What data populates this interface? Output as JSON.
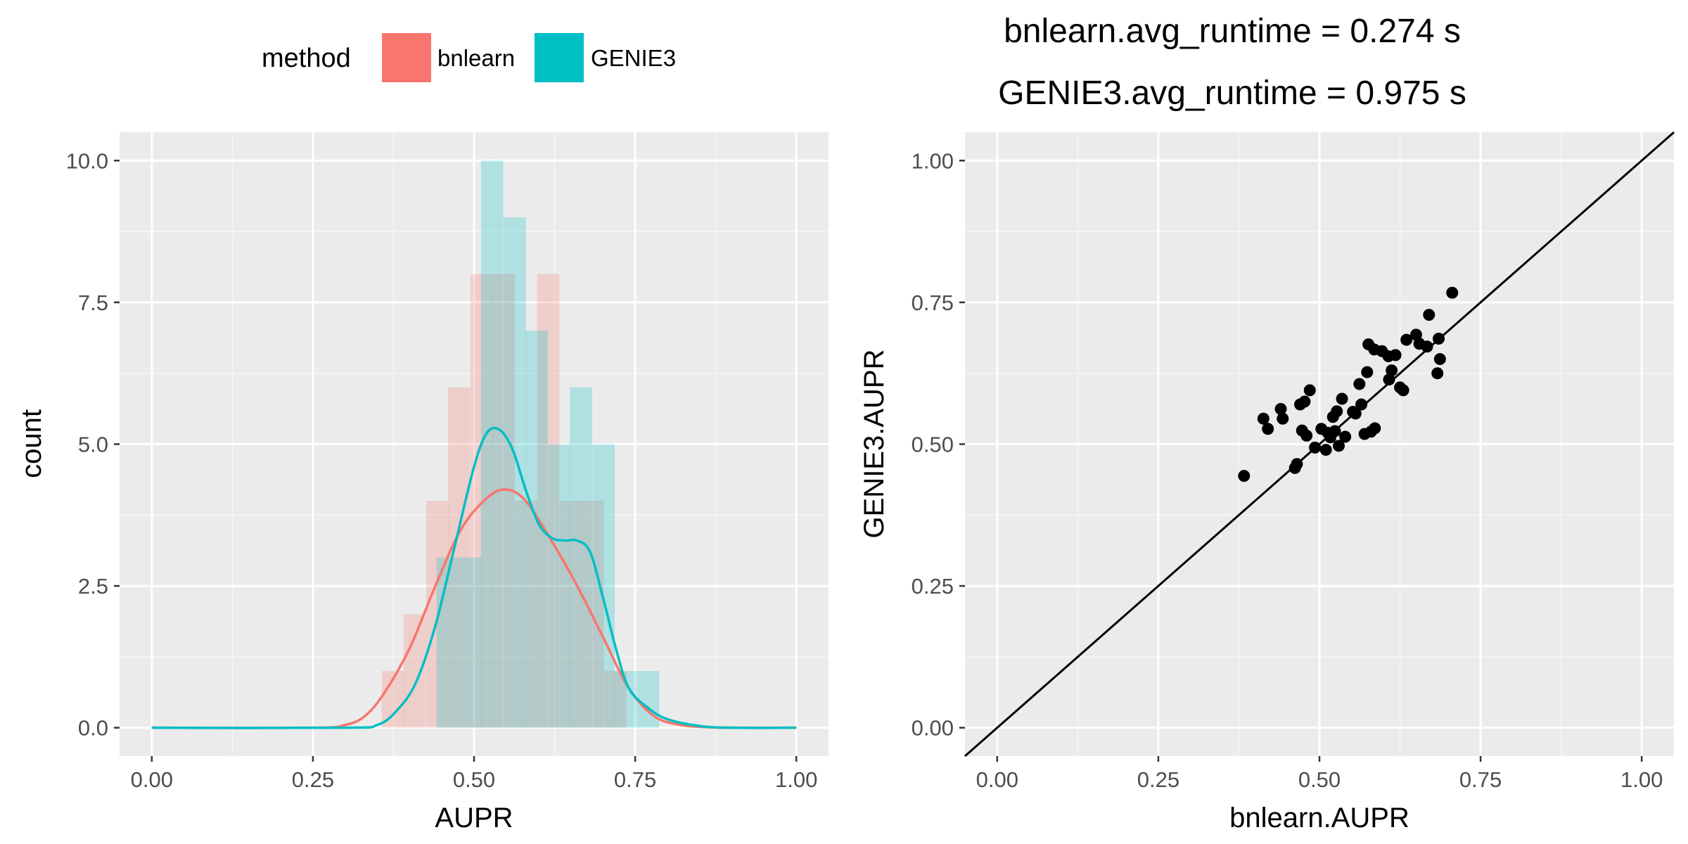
{
  "legend": {
    "title": "method",
    "items": [
      {
        "label": "bnlearn",
        "color": "#F8766D"
      },
      {
        "label": "GENIE3",
        "color": "#00BFC4"
      }
    ]
  },
  "chart_data": [
    {
      "type": "bar",
      "subtype": "histogram+density",
      "title": "",
      "xlabel": "AUPR",
      "ylabel": "count",
      "xlim": [
        -0.05,
        1.05
      ],
      "ylim": [
        -0.5,
        10.5
      ],
      "xticks": [
        0,
        0.25,
        0.5,
        0.75,
        1
      ],
      "xtick_labels": [
        "0.00",
        "0.25",
        "0.50",
        "0.75",
        "1.00"
      ],
      "yticks": [
        0,
        2.5,
        5,
        7.5,
        10
      ],
      "ytick_labels": [
        "0.0",
        "2.5",
        "5.0",
        "7.5",
        "10.0"
      ],
      "grid": true,
      "bin_width": 0.0345,
      "series": [
        {
          "name": "bnlearn",
          "color": "#F8766D",
          "hist": {
            "bin_centers": [
              0.374,
              0.408,
              0.443,
              0.477,
              0.512,
              0.546,
              0.581,
              0.615,
              0.65,
              0.684,
              0.719
            ],
            "counts": [
              1,
              2,
              4,
              6,
              8,
              8,
              4,
              8,
              4,
              4,
              1
            ]
          },
          "density": {
            "x": [
              0,
              0.25,
              0.3,
              0.33,
              0.36,
              0.4,
              0.44,
              0.48,
              0.52,
              0.55,
              0.58,
              0.62,
              0.66,
              0.7,
              0.74,
              0.78,
              0.82,
              0.86,
              0.9,
              1.0
            ],
            "y": [
              0,
              0,
              0.05,
              0.2,
              0.6,
              1.4,
              2.5,
              3.5,
              4.05,
              4.2,
              4.0,
              3.3,
              2.5,
              1.6,
              0.7,
              0.2,
              0.05,
              0.01,
              0,
              0
            ]
          }
        },
        {
          "name": "GENIE3",
          "color": "#00BFC4",
          "hist": {
            "bin_centers": [
              0.459,
              0.494,
              0.528,
              0.563,
              0.597,
              0.632,
              0.666,
              0.701,
              0.735,
              0.77
            ],
            "counts": [
              3,
              3,
              10,
              9,
              7,
              5,
              6,
              5,
              1,
              1
            ]
          },
          "density": {
            "x": [
              0,
              0.3,
              0.35,
              0.38,
              0.41,
              0.44,
              0.47,
              0.5,
              0.52,
              0.54,
              0.56,
              0.58,
              0.6,
              0.62,
              0.64,
              0.66,
              0.68,
              0.7,
              0.72,
              0.74,
              0.77,
              0.8,
              0.85,
              0.9,
              1.0
            ],
            "y": [
              0,
              0,
              0.05,
              0.3,
              0.8,
              1.8,
              3.2,
              4.6,
              5.2,
              5.25,
              4.9,
              4.2,
              3.6,
              3.35,
              3.3,
              3.3,
              3.1,
              2.3,
              1.4,
              0.7,
              0.35,
              0.15,
              0.03,
              0,
              0
            ]
          }
        }
      ]
    },
    {
      "type": "scatter",
      "title": [
        "bnlearn.avg_runtime = 0.274 s",
        "GENIE3.avg_runtime = 0.975 s"
      ],
      "xlabel": "bnlearn.AUPR",
      "ylabel": "GENIE3.AUPR",
      "xlim": [
        -0.05,
        1.05
      ],
      "ylim": [
        -0.05,
        1.05
      ],
      "xticks": [
        0,
        0.25,
        0.5,
        0.75,
        1
      ],
      "xtick_labels": [
        "0.00",
        "0.25",
        "0.50",
        "0.75",
        "1.00"
      ],
      "yticks": [
        0,
        0.25,
        0.5,
        0.75,
        1
      ],
      "ytick_labels": [
        "0.00",
        "0.25",
        "0.50",
        "0.75",
        "1.00"
      ],
      "grid": true,
      "reference_line": {
        "slope": 1,
        "intercept": 0
      },
      "point_color": "#000000",
      "points": [
        [
          0.383,
          0.444
        ],
        [
          0.413,
          0.545
        ],
        [
          0.42,
          0.527
        ],
        [
          0.44,
          0.562
        ],
        [
          0.443,
          0.545
        ],
        [
          0.462,
          0.458
        ],
        [
          0.465,
          0.465
        ],
        [
          0.47,
          0.57
        ],
        [
          0.473,
          0.524
        ],
        [
          0.477,
          0.575
        ],
        [
          0.48,
          0.515
        ],
        [
          0.485,
          0.595
        ],
        [
          0.493,
          0.494
        ],
        [
          0.503,
          0.527
        ],
        [
          0.51,
          0.49
        ],
        [
          0.513,
          0.52
        ],
        [
          0.517,
          0.512
        ],
        [
          0.521,
          0.548
        ],
        [
          0.524,
          0.523
        ],
        [
          0.527,
          0.558
        ],
        [
          0.53,
          0.497
        ],
        [
          0.535,
          0.58
        ],
        [
          0.54,
          0.513
        ],
        [
          0.552,
          0.557
        ],
        [
          0.556,
          0.554
        ],
        [
          0.562,
          0.606
        ],
        [
          0.565,
          0.57
        ],
        [
          0.57,
          0.518
        ],
        [
          0.574,
          0.627
        ],
        [
          0.576,
          0.676
        ],
        [
          0.58,
          0.522
        ],
        [
          0.585,
          0.667
        ],
        [
          0.586,
          0.528
        ],
        [
          0.597,
          0.664
        ],
        [
          0.607,
          0.655
        ],
        [
          0.608,
          0.614
        ],
        [
          0.612,
          0.63
        ],
        [
          0.618,
          0.657
        ],
        [
          0.625,
          0.6
        ],
        [
          0.63,
          0.595
        ],
        [
          0.635,
          0.684
        ],
        [
          0.65,
          0.693
        ],
        [
          0.655,
          0.677
        ],
        [
          0.667,
          0.672
        ],
        [
          0.67,
          0.728
        ],
        [
          0.683,
          0.625
        ],
        [
          0.685,
          0.686
        ],
        [
          0.687,
          0.65
        ],
        [
          0.706,
          0.767
        ]
      ]
    }
  ]
}
